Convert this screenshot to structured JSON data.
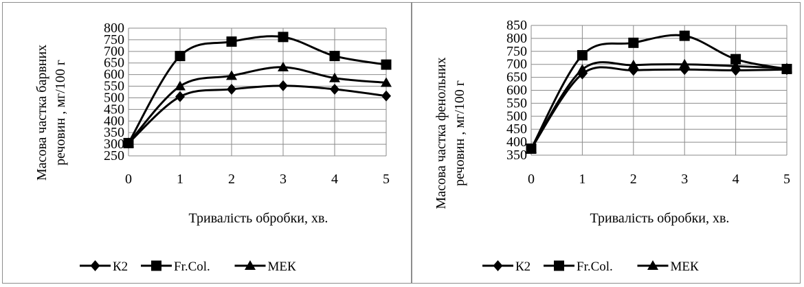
{
  "chart_data": [
    {
      "type": "line",
      "xlabel": "Тривалість обробки, хв.",
      "ylabel": [
        "Масова частка барвних",
        "речовин , мг/100 г"
      ],
      "x": [
        0,
        1,
        2,
        3,
        4,
        5
      ],
      "ylim": [
        250,
        800
      ],
      "ytick_step": 50,
      "grid": true,
      "legend_position": "bottom",
      "series": [
        {
          "name": "К2",
          "marker": "diamond",
          "values": [
            305,
            505,
            537,
            552,
            537,
            508
          ]
        },
        {
          "name": "Fr.Col.",
          "marker": "square",
          "values": [
            305,
            680,
            742,
            762,
            680,
            643
          ]
        },
        {
          "name": "МЕК",
          "marker": "triangle",
          "values": [
            305,
            550,
            595,
            632,
            585,
            565
          ]
        }
      ]
    },
    {
      "type": "line",
      "xlabel": "Тривалість обробки, хв.",
      "ylabel": [
        "Масова частка фенольних",
        "речовин , мг/100 г"
      ],
      "x": [
        0,
        1,
        2,
        3,
        4,
        5
      ],
      "ylim": [
        350,
        850
      ],
      "ytick_step": 50,
      "grid": true,
      "legend_position": "bottom",
      "series": [
        {
          "name": "К2",
          "marker": "diamond",
          "values": [
            375,
            663,
            677,
            680,
            677,
            680
          ]
        },
        {
          "name": "Fr.Col.",
          "marker": "square",
          "values": [
            375,
            735,
            783,
            810,
            720,
            682
          ]
        },
        {
          "name": "МЕК",
          "marker": "triangle",
          "values": [
            375,
            680,
            697,
            700,
            693,
            685
          ]
        }
      ]
    }
  ]
}
